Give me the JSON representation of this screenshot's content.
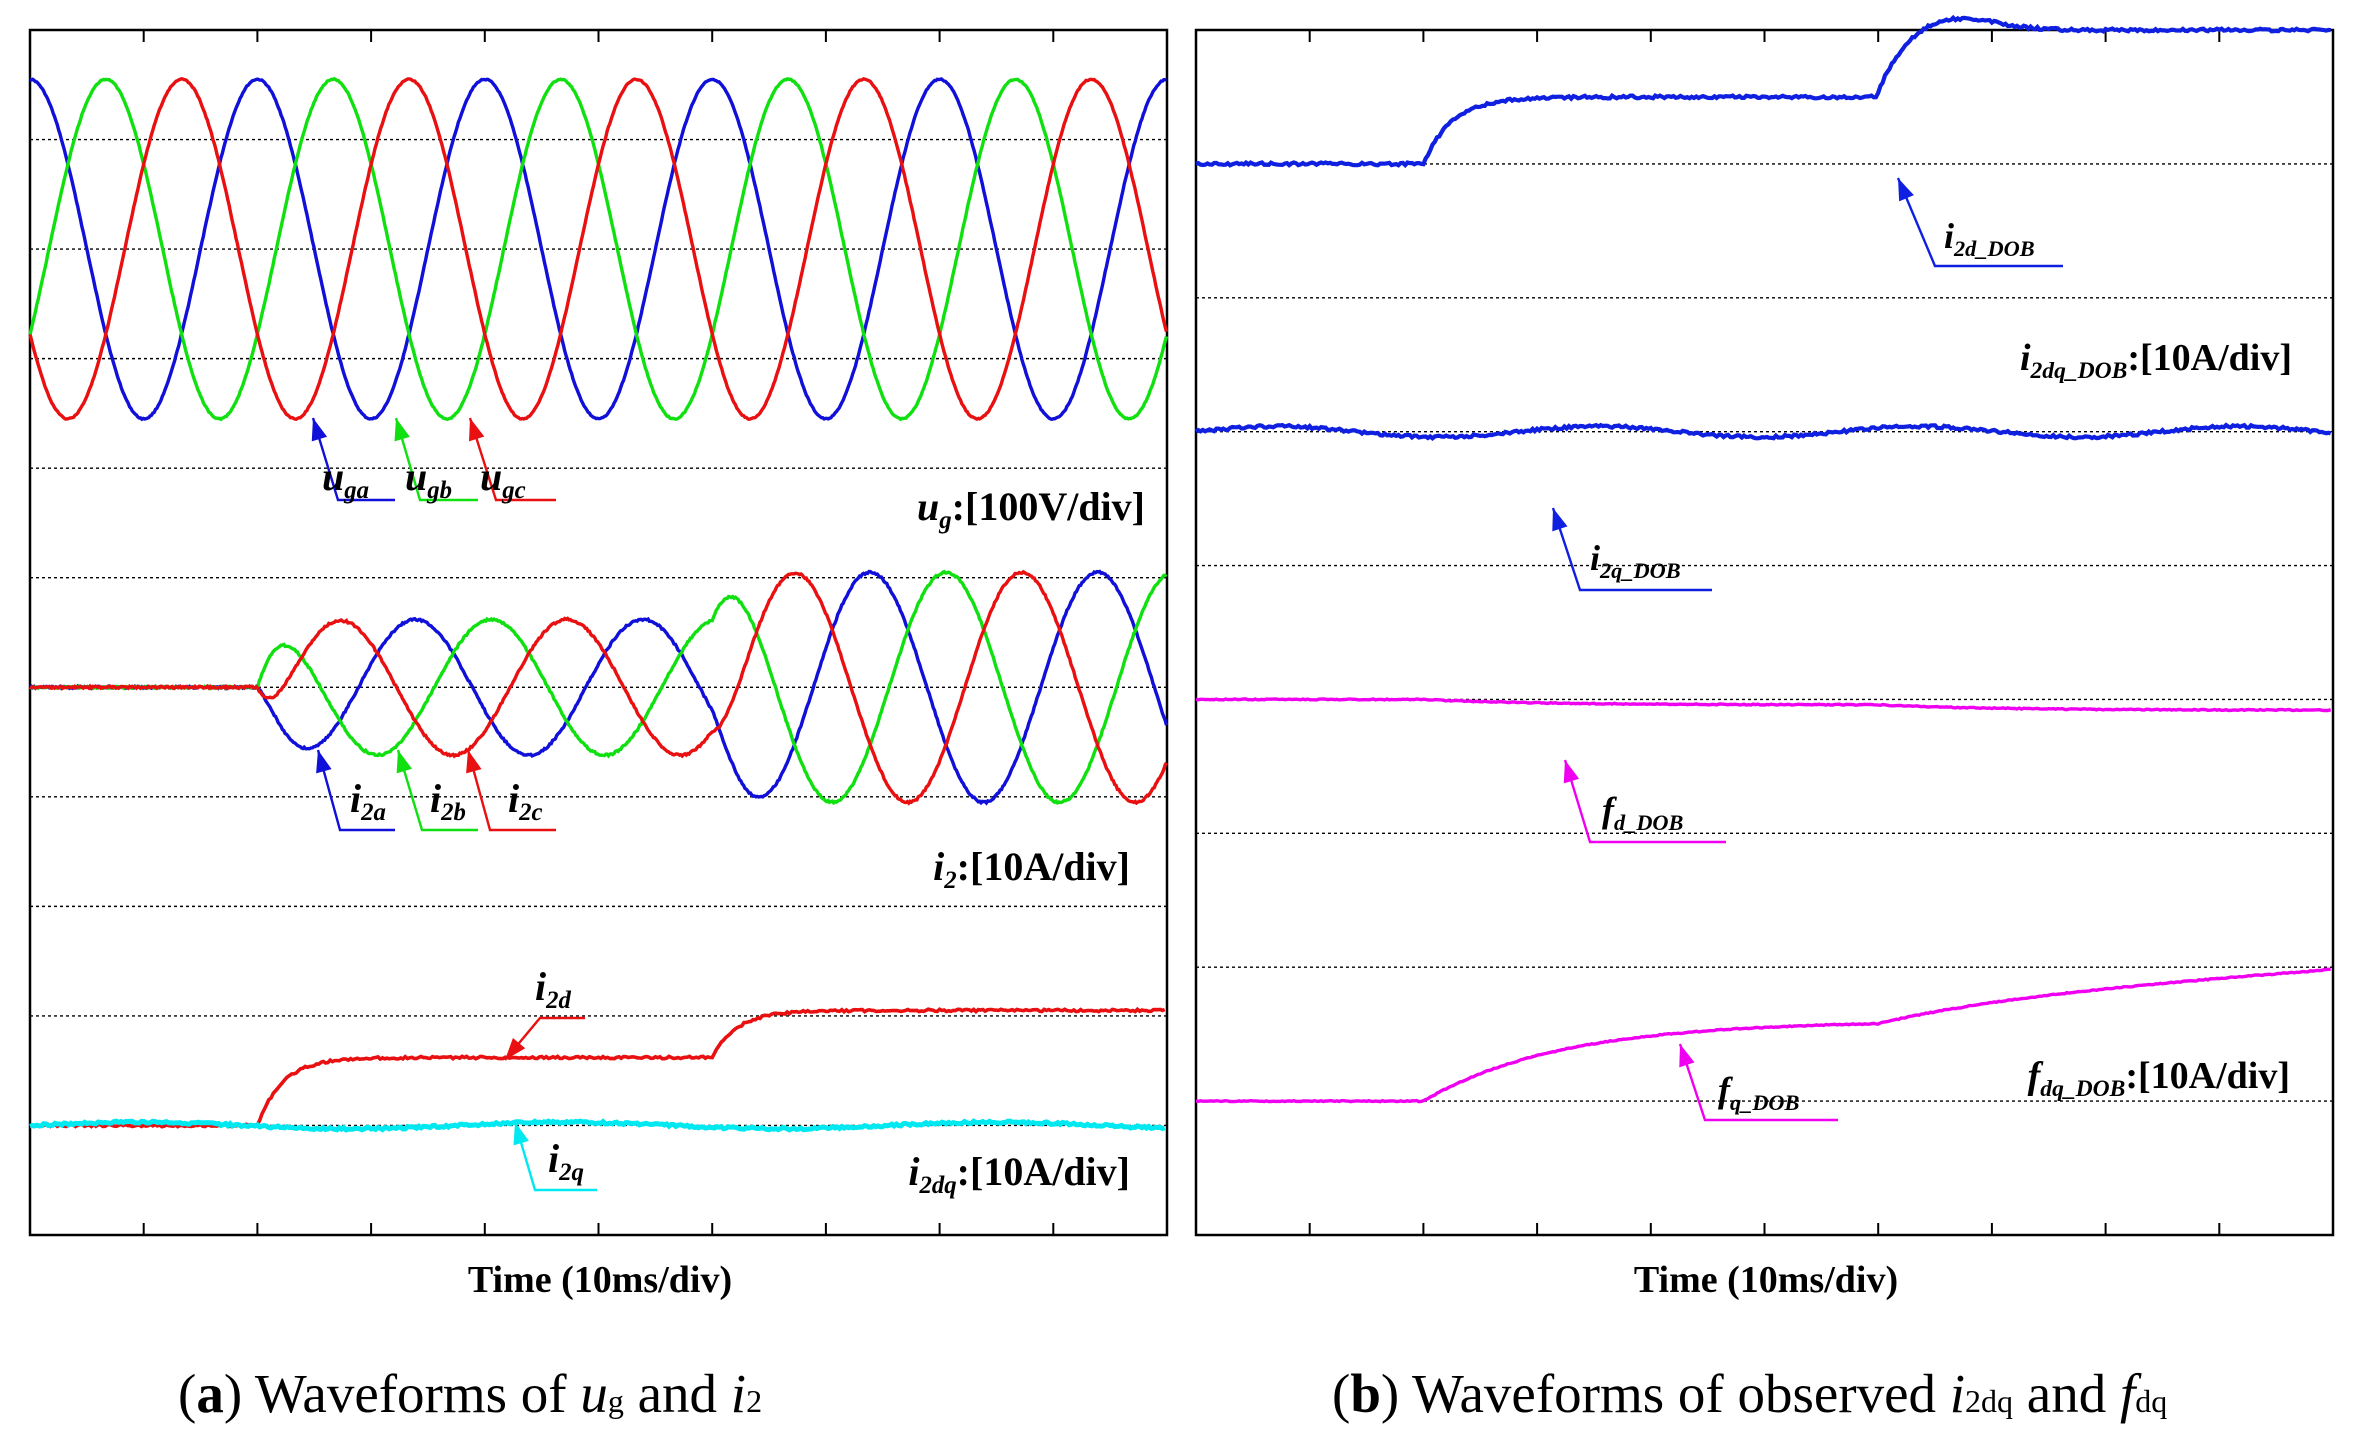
{
  "colors": {
    "phase_a": "#1010d8",
    "phase_b": "#10e010",
    "phase_c": "#e81010",
    "i2q": "#00e8f0",
    "observer_i": "#1020e0",
    "observer_f": "#f000f0",
    "grid": "#000000"
  },
  "chart_data": [
    {
      "type": "line",
      "id": "a",
      "title": "(a) Waveforms of ug and i2",
      "caption": {
        "paren_open": "(",
        "letter": "a",
        "paren_close": ")",
        "text": " Waveforms of ",
        "v1": "u",
        "s1": "g",
        "mid": " and ",
        "v2": "i",
        "s2": "2"
      },
      "xlabel": "Time (10ms/div)",
      "x_divisions": 10,
      "y_divisions": 11,
      "xlim": [
        0,
        100
      ],
      "x_unit": "ms",
      "grid_frequency_hz": 50,
      "events_ms": [
        20,
        60
      ],
      "groups": [
        {
          "name": "ug",
          "scale_label": {
            "sym": "u",
            "sub": "g",
            "text": ":[100V/div]"
          },
          "center_div": 9,
          "series": [
            {
              "name": "uga",
              "sym": "u",
              "sub": "ga",
              "color_key": "phase_a",
              "amplitude_div": 1.55,
              "phase_deg": 0
            },
            {
              "name": "ugb",
              "sym": "u",
              "sub": "gb",
              "color_key": "phase_b",
              "amplitude_div": 1.55,
              "phase_deg": -120
            },
            {
              "name": "ugc",
              "sym": "u",
              "sub": "gc",
              "color_key": "phase_c",
              "amplitude_div": 1.55,
              "phase_deg": 120
            }
          ]
        },
        {
          "name": "i2",
          "scale_label": {
            "sym": "i",
            "sub": "2",
            "text": ":[10A/div]"
          },
          "center_div": 5,
          "amplitude_steps_div": [
            [
              0,
              0
            ],
            [
              20,
              0.62
            ],
            [
              60,
              1.05
            ]
          ],
          "series": [
            {
              "name": "i2a",
              "sym": "i",
              "sub": "2a",
              "color_key": "phase_a"
            },
            {
              "name": "i2b",
              "sym": "i",
              "sub": "2b",
              "color_key": "phase_b"
            },
            {
              "name": "i2c",
              "sym": "i",
              "sub": "2c",
              "color_key": "phase_c"
            }
          ]
        },
        {
          "name": "i2dq",
          "scale_label": {
            "sym": "i",
            "sub": "2dq",
            "text": ":[10A/div]"
          },
          "center_div": 1,
          "series": [
            {
              "name": "i2d",
              "sym": "i",
              "sub": "2d",
              "color_key": "phase_c",
              "steps_div": [
                [
                  0,
                  0
                ],
                [
                  20,
                  0.62
                ],
                [
                  60,
                  1.05
                ]
              ]
            },
            {
              "name": "i2q",
              "sym": "i",
              "sub": "2q",
              "color_key": "i2q",
              "steps_div": [
                [
                  0,
                  0
                ]
              ]
            }
          ]
        }
      ]
    },
    {
      "type": "line",
      "id": "b",
      "title": "(b) Waveforms of observed i2dq and fdq",
      "caption": {
        "paren_open": "(",
        "letter": "b",
        "paren_close": ")",
        "text": " Waveforms of observed ",
        "v1": "i",
        "s1": "2dq",
        "mid": " and ",
        "v2": "f",
        "s2": "dq"
      },
      "xlabel": "Time (10ms/div)",
      "x_divisions": 10,
      "y_divisions": 9,
      "xlim": [
        0,
        100
      ],
      "x_unit": "ms",
      "events_ms": [
        20,
        60
      ],
      "scale_labels": [
        {
          "sym": "i",
          "sub": "2dq_DOB",
          "text": ":[10A/div]"
        },
        {
          "sym": "f",
          "sub": "dq_DOB",
          "text": ":[10A/div]"
        }
      ],
      "series": [
        {
          "name": "i2d_DOB",
          "sym": "i",
          "sub": "2d_DOB",
          "color_key": "observer_i",
          "baseline_div": 8,
          "steps_div": [
            [
              20,
              0.5
            ],
            [
              60,
              1.0
            ]
          ],
          "tau_ms": 2.5
        },
        {
          "name": "i2q_DOB",
          "sym": "i",
          "sub": "2q_DOB",
          "color_key": "observer_i",
          "baseline_div": 6,
          "steps_div": [
            [
              0,
              0
            ]
          ],
          "tau_ms": 2.5
        },
        {
          "name": "fd_DOB",
          "sym": "f",
          "sub": "d_DOB",
          "color_key": "observer_f",
          "baseline_div": 4,
          "steps_div": [
            [
              20,
              -0.04
            ],
            [
              60,
              -0.08
            ]
          ],
          "tau_ms": 10
        },
        {
          "name": "fq_DOB",
          "sym": "f",
          "sub": "q_DOB",
          "color_key": "observer_f",
          "baseline_div": 1,
          "steps_div": [
            [
              20,
              0.6
            ],
            [
              60,
              0.75
            ]
          ],
          "tau_ms": 12
        }
      ]
    }
  ]
}
